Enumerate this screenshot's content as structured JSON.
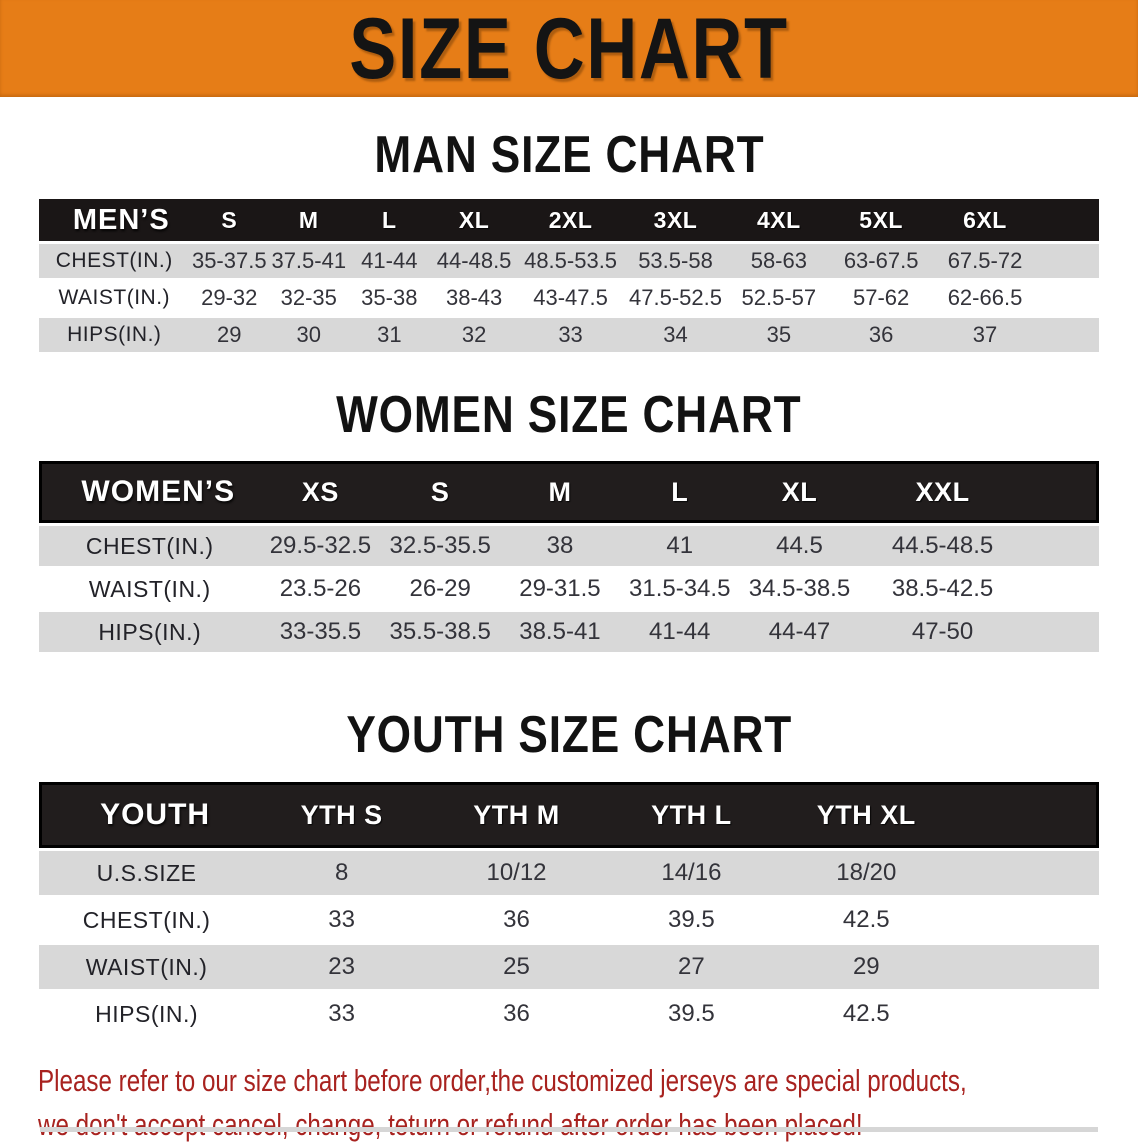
{
  "banner": {
    "title": "SIZE CHART"
  },
  "sections": {
    "men": {
      "heading": "MAN SIZE CHART"
    },
    "women": {
      "heading": "WOMEN SIZE CHART"
    },
    "youth": {
      "heading": "YOUTH SIZE CHART"
    }
  },
  "tables": {
    "men": {
      "label": "MEN’S",
      "columns": [
        "S",
        "M",
        "L",
        "XL",
        "2XL",
        "3XL",
        "4XL",
        "5XL",
        "6XL"
      ],
      "rows": [
        {
          "label": "CHEST(IN.)",
          "values": [
            "35-37.5",
            "37.5-41",
            "41-44",
            "44-48.5",
            "48.5-53.5",
            "53.5-58",
            "58-63",
            "63-67.5",
            "67.5-72"
          ]
        },
        {
          "label": "WAIST(IN.)",
          "values": [
            "29-32",
            "32-35",
            "35-38",
            "38-43",
            "43-47.5",
            "47.5-52.5",
            "52.5-57",
            "57-62",
            "62-66.5"
          ]
        },
        {
          "label": "HIPS(IN.)",
          "values": [
            "29",
            "30",
            "31",
            "32",
            "33",
            "34",
            "35",
            "36",
            "37"
          ]
        }
      ]
    },
    "women": {
      "label": "WOMEN’S",
      "columns": [
        "XS",
        "S",
        "M",
        "L",
        "XL",
        "XXL"
      ],
      "rows": [
        {
          "label": "CHEST(IN.)",
          "values": [
            "29.5-32.5",
            "32.5-35.5",
            "38",
            "41",
            "44.5",
            "44.5-48.5"
          ]
        },
        {
          "label": "WAIST(IN.)",
          "values": [
            "23.5-26",
            "26-29",
            "29-31.5",
            "31.5-34.5",
            "34.5-38.5",
            "38.5-42.5"
          ]
        },
        {
          "label": "HIPS(IN.)",
          "values": [
            "33-35.5",
            "35.5-38.5",
            "38.5-41",
            "41-44",
            "44-47",
            "47-50"
          ]
        }
      ]
    },
    "youth": {
      "label": "YOUTH",
      "columns": [
        "YTH S",
        "YTH M",
        "YTH L",
        "YTH XL"
      ],
      "rows": [
        {
          "label": "U.S.SIZE",
          "values": [
            "8",
            "10/12",
            "14/16",
            "18/20"
          ]
        },
        {
          "label": "CHEST(IN.)",
          "values": [
            "33",
            "36",
            "39.5",
            "42.5"
          ]
        },
        {
          "label": "WAIST(IN.)",
          "values": [
            "23",
            "25",
            "27",
            "29"
          ]
        },
        {
          "label": "HIPS(IN.)",
          "values": [
            "33",
            "36",
            "39.5",
            "42.5"
          ]
        }
      ]
    }
  },
  "note": {
    "line1": "Please refer to our size chart before order,the customized jerseys are special products,",
    "line2": "we don't accept cancel, change, teturn or refund after order has been placed!"
  },
  "colors": {
    "banner_orange": "#E67D17",
    "table_header_black": "#1A1616",
    "row_shade_gray": "#D8D8D8",
    "row_white": "#FFFFFF",
    "note_red": "#A8221F",
    "title_black": "#141414"
  }
}
